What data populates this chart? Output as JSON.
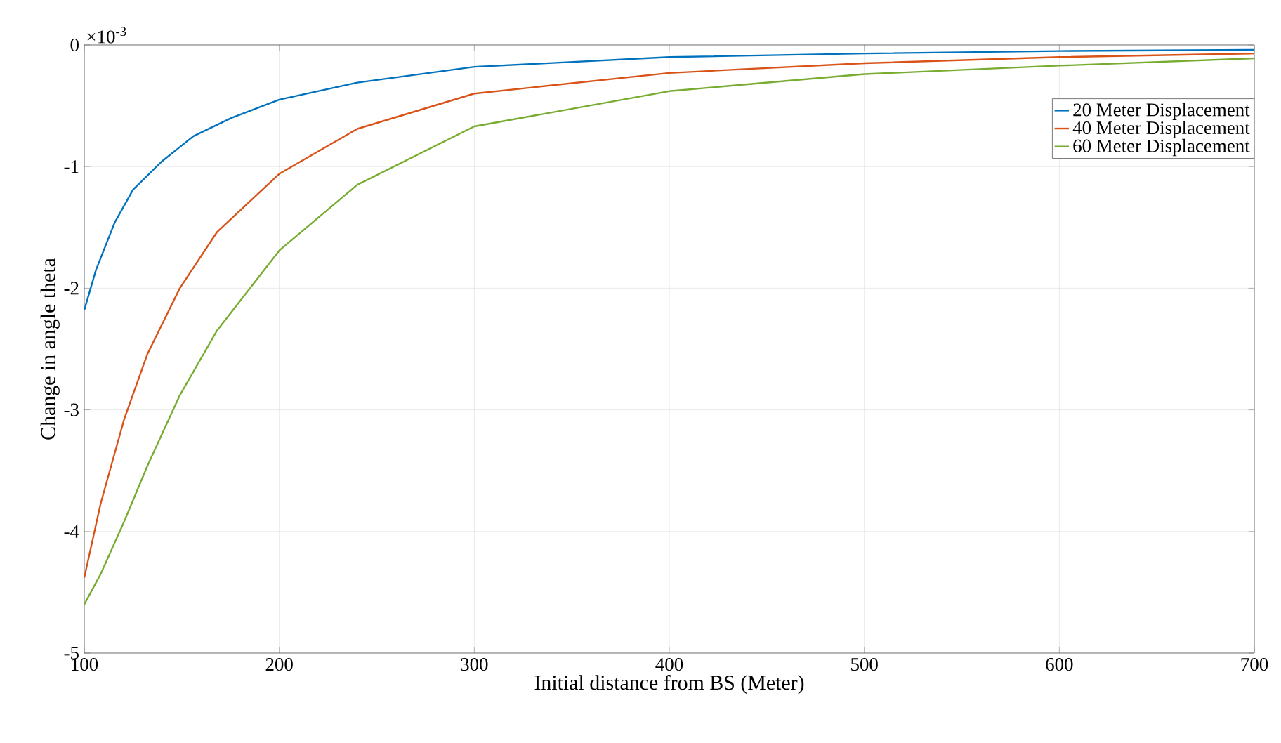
{
  "chart_data": {
    "type": "line",
    "xlabel": "Initial distance from BS (Meter)",
    "ylabel": "Change in angle theta",
    "annotations": [
      "×10$^{-3}$"
    ],
    "xlim": [
      100,
      700
    ],
    "ylim": [
      -5,
      0
    ],
    "xticks": [
      100,
      200,
      300,
      400,
      500,
      600,
      700
    ],
    "yticks": [
      -5,
      -4,
      -3,
      -2,
      -1,
      0
    ],
    "grid": true,
    "legend": "top right",
    "marker": "none",
    "line_style": "solid",
    "series": [
      {
        "name": "20 Meter Displacement",
        "color": "#0072bd",
        "x": [
          100,
          106,
          115.6,
          125,
          139.6,
          156,
          175.5,
          200,
          240,
          300,
          400,
          500,
          600,
          700
        ],
        "values": [
          -2.18,
          -1.85,
          -1.46,
          -1.19,
          -0.96,
          -0.75,
          -0.6,
          -0.45,
          -0.31,
          -0.18,
          -0.1,
          -0.07,
          -0.05,
          -0.04
        ]
      },
      {
        "name": "40 Meter Displacement",
        "color": "#d95319",
        "x": [
          100,
          108.4,
          120.4,
          132.4,
          149,
          168,
          200,
          240,
          300,
          400,
          500,
          600,
          700
        ],
        "values": [
          -4.38,
          -3.77,
          -3.08,
          -2.54,
          -2.0,
          -1.54,
          -1.06,
          -0.69,
          -0.4,
          -0.23,
          -0.15,
          -0.1,
          -0.07
        ]
      },
      {
        "name": "60 Meter Displacement",
        "color": "#77ac30",
        "x": [
          100,
          108.4,
          120.4,
          132.4,
          149,
          168,
          200,
          240,
          300,
          400,
          500,
          600,
          700
        ],
        "values": [
          -4.6,
          -4.35,
          -3.92,
          -3.46,
          -2.88,
          -2.35,
          -1.69,
          -1.15,
          -0.67,
          -0.38,
          -0.24,
          -0.17,
          -0.11
        ]
      }
    ]
  }
}
